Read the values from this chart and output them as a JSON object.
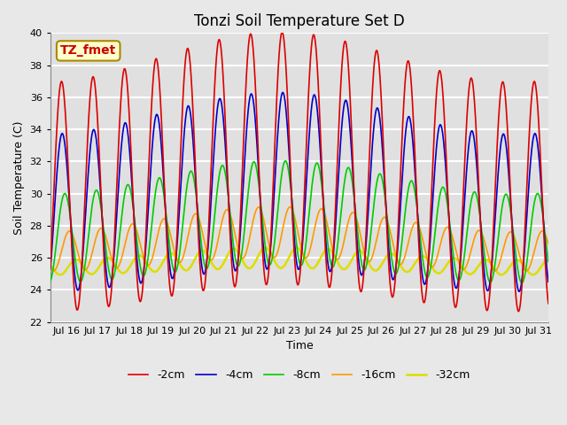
{
  "title": "Tonzi Soil Temperature Set D",
  "xlabel": "Time",
  "ylabel": "Soil Temperature (C)",
  "annotation": "TZ_fmet",
  "xlim_days": [
    15.5,
    31.3
  ],
  "ylim": [
    22,
    40
  ],
  "yticks": [
    22,
    24,
    26,
    28,
    30,
    32,
    34,
    36,
    38,
    40
  ],
  "xtick_labels": [
    "Jul 16",
    "Jul 17",
    "Jul 18",
    "Jul 19",
    "Jul 20",
    "Jul 21",
    "Jul 22",
    "Jul 23",
    "Jul 24",
    "Jul 25",
    "Jul 26",
    "Jul 27",
    "Jul 28",
    "Jul 29",
    "Jul 30",
    "Jul 31"
  ],
  "xtick_days": [
    16,
    17,
    18,
    19,
    20,
    21,
    22,
    23,
    24,
    25,
    26,
    27,
    28,
    29,
    30,
    31
  ],
  "series_colors": [
    "#dd0000",
    "#0000cc",
    "#00cc00",
    "#ff9900",
    "#dddd00"
  ],
  "series_labels": [
    "-2cm",
    "-4cm",
    "-8cm",
    "-16cm",
    "-32cm"
  ],
  "series_linewidths": [
    1.2,
    1.2,
    1.2,
    1.2,
    1.8
  ],
  "background_color": "#e0e0e0",
  "fig_background_color": "#e8e8e8",
  "grid_color": "#ffffff",
  "title_fontsize": 12,
  "label_fontsize": 9,
  "tick_fontsize": 8,
  "legend_fontsize": 9,
  "figsize": [
    6.4,
    4.8
  ],
  "dpi": 100
}
